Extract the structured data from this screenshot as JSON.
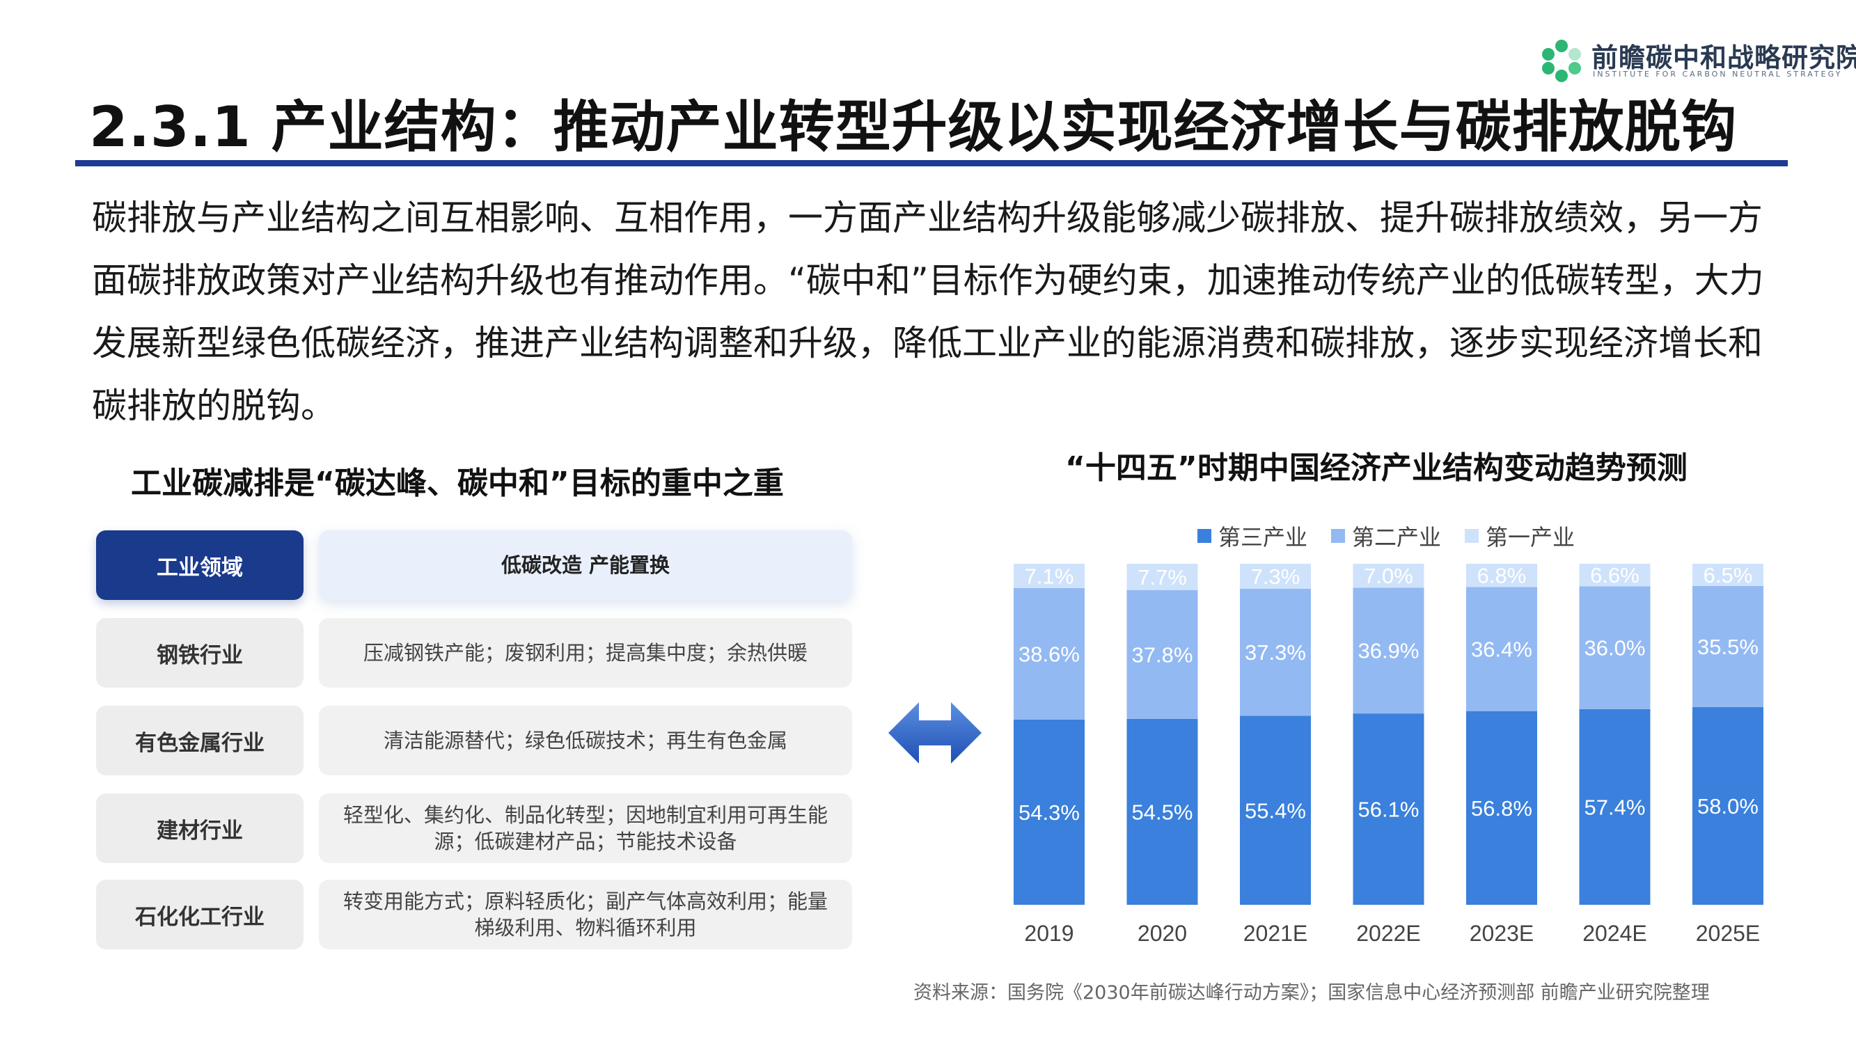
{
  "logo": {
    "name_cn": "前瞻碳中和战略研究院",
    "name_en": "INSTITUTE FOR CARBON NEUTRAL STRATEGY",
    "icon": "hexagon-leaf-logo",
    "color": "#2bb673"
  },
  "header": {
    "title": "2.3.1 产业结构：推动产业转型升级以实现经济增长与碳排放脱钩",
    "rule_color": "#1f3a93"
  },
  "intro": {
    "text": "碳排放与产业结构之间互相影响、互相作用，一方面产业结构升级能够减少碳排放、提升碳排放绩效，另一方面碳排放政策对产业结构升级也有推动作用。“碳中和”目标作为硬约束，加速推动传统产业的低碳转型，大力发展新型绿色低碳经济，推进产业结构调整和升级，降低工业产业的能源消费和碳排放，逐步实现经济增长和碳排放的脱钩。"
  },
  "left": {
    "heading": "工业碳减排是“碳达峰、碳中和”目标的重中之重",
    "header_row": {
      "key": "工业领域",
      "value": "低碳改造  产能置换"
    },
    "rows": [
      {
        "key": "钢铁行业",
        "value": "压减钢铁产能；废钢利用；提高集中度；余热供暖"
      },
      {
        "key": "有色金属行业",
        "value": "清洁能源替代；绿色低碳技术；再生有色金属"
      },
      {
        "key": "建材行业",
        "value": "轻型化、集约化、制品化转型；因地制宜利用可再生能源；低碳建材产品；节能技术设备"
      },
      {
        "key": "石化化工行业",
        "value": "转变用能方式；原料轻质化；副产气体高效利用；能量梯级利用、物料循环利用"
      }
    ],
    "colors": {
      "header_key": "#1a3a8c",
      "header_value": "#e9f0fb"
    }
  },
  "connector_icon": "double-arrow-icon",
  "chart_data": {
    "type": "bar",
    "stacked": true,
    "percent": true,
    "title": "“十四五”时期中国经济产业结构变动趋势预测",
    "legend_position": "top",
    "categories": [
      "2019",
      "2020",
      "2021E",
      "2022E",
      "2023E",
      "2024E",
      "2025E"
    ],
    "series": [
      {
        "name": "第三产业",
        "color": "#3a80dc",
        "values": [
          54.3,
          54.5,
          55.4,
          56.1,
          56.8,
          57.4,
          58.0
        ],
        "labels": [
          "54.3%",
          "54.5%",
          "55.4%",
          "56.1%",
          "56.8%",
          "57.4%",
          "58.0%"
        ]
      },
      {
        "name": "第二产业",
        "color": "#93b9f2",
        "values": [
          38.6,
          37.8,
          37.3,
          36.9,
          36.4,
          36.0,
          35.5
        ],
        "labels": [
          "38.6%",
          "37.8%",
          "37.3%",
          "36.9%",
          "36.4%",
          "36.0%",
          "35.5%"
        ]
      },
      {
        "name": "第一产业",
        "color": "#cfe2fb",
        "values": [
          7.1,
          7.7,
          7.3,
          7.0,
          6.8,
          6.6,
          6.5
        ],
        "labels": [
          "7.1%",
          "7.7%",
          "7.3%",
          "7.0%",
          "6.8%",
          "6.6%",
          "6.5%"
        ]
      }
    ],
    "ylim": [
      0,
      100
    ],
    "grid": false
  },
  "source": "资料来源：国务院《2030年前碳达峰行动方案》；国家信息中心经济预测部  前瞻产业研究院整理"
}
